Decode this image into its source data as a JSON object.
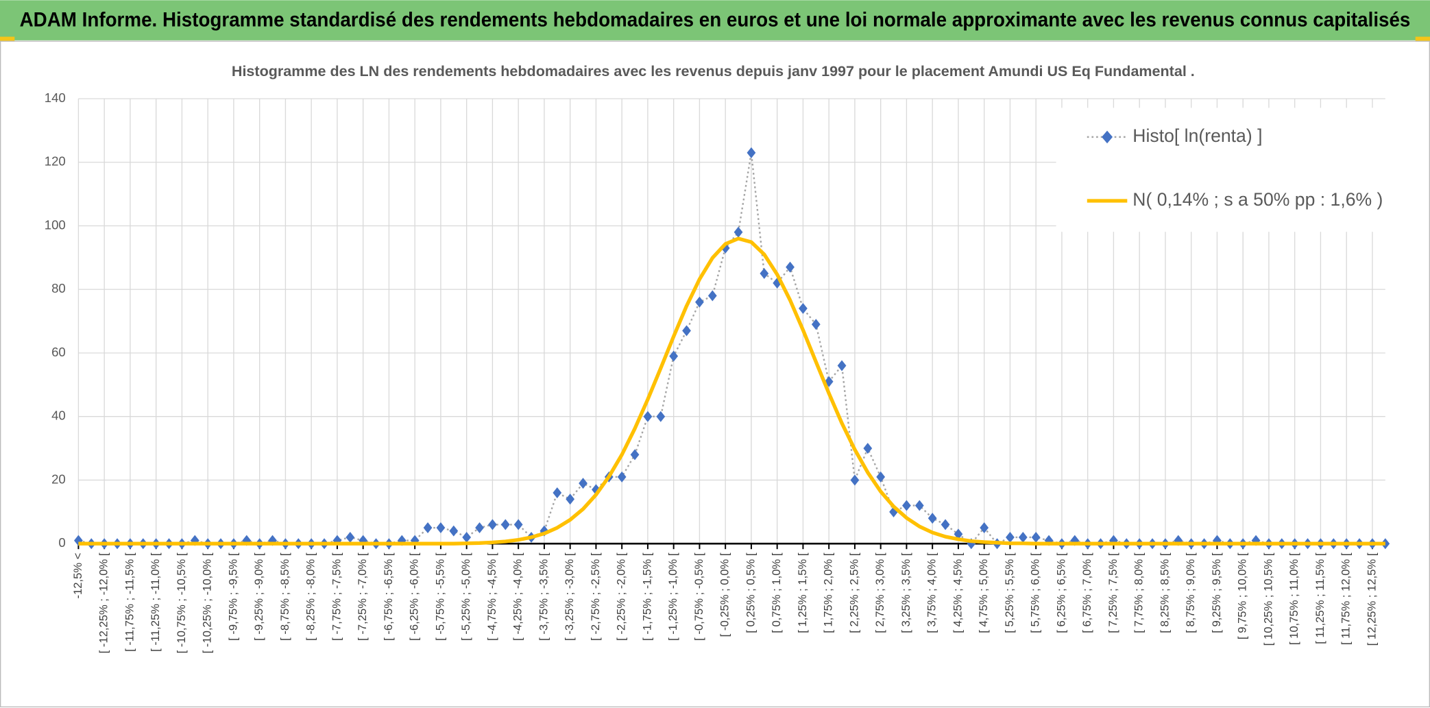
{
  "header": {
    "title": "ADAM Informe. Histogramme standardisé des rendements hebdomadaires en euros et une loi normale approximante avec les revenus connus capitalisés"
  },
  "chart_data": {
    "type": "line",
    "title": "Histogramme des LN des rendements hebdomadaires avec les revenus depuis janv 1997 pour le placement Amundi US Eq Fundamental .",
    "categories": [
      "-12,5% <",
      null,
      "[ -12,25% ; -12,0% [",
      null,
      "[ -11,75% ; -11,5% [",
      null,
      "[ -11,25% ; -11,0% [",
      null,
      "[ -10,75% ; -10,5% [",
      null,
      "[ -10,25% ; -10,0% [",
      null,
      "[ -9,75% ; -9,5% [",
      null,
      "[ -9,25% ; -9,0% [",
      null,
      "[ -8,75% ; -8,5% [",
      null,
      "[ -8,25% ; -8,0% [",
      null,
      "[ -7,75% ; -7,5% [",
      null,
      "[ -7,25% ; -7,0% [",
      null,
      "[ -6,75% ; -6,5% [",
      null,
      "[ -6,25% ; -6,0% [",
      null,
      "[ -5,75% ; -5,5% [",
      null,
      "[ -5,25% ; -5,0% [",
      null,
      "[ -4,75% ; -4,5% [",
      null,
      "[ -4,25% ; -4,0% [",
      null,
      "[ -3,75% ; -3,5% [",
      null,
      "[ -3,25% ; -3,0% [",
      null,
      "[ -2,75% ; -2,5% [",
      null,
      "[ -2,25% ; -2,0% [",
      null,
      "[ -1,75% ; -1,5% [",
      null,
      "[ -1,25% ; -1,0% [",
      null,
      "[ -0,75% ; -0,5% [",
      null,
      "[ -0,25% ; 0,0% [",
      null,
      "[ 0,25% ; 0,5% [",
      null,
      "[ 0,75% ; 1,0% [",
      null,
      "[ 1,25% ; 1,5% [",
      null,
      "[ 1,75% ; 2,0% [",
      null,
      "[ 2,25% ; 2,5% [",
      null,
      "[ 2,75% ; 3,0% [",
      null,
      "[ 3,25% ; 3,5% [",
      null,
      "[ 3,75% ; 4,0% [",
      null,
      "[ 4,25% ; 4,5% [",
      null,
      "[ 4,75% ; 5,0% [",
      null,
      "[ 5,25% ; 5,5% [",
      null,
      "[ 5,75% ; 6,0% [",
      null,
      "[ 6,25% ; 6,5% [",
      null,
      "[ 6,75% ; 7,0% [",
      null,
      "[ 7,25% ; 7,5% [",
      null,
      "[ 7,75% ; 8,0% [",
      null,
      "[ 8,25% ; 8,5% [",
      null,
      "[ 8,75% ; 9,0% [",
      null,
      "[ 9,25% ; 9,5% [",
      null,
      "[ 9,75% ; 10,0% [",
      null,
      "[ 10,25% ; 10,5% [",
      null,
      "[ 10,75% ; 11,0% [",
      null,
      "[ 11,25% ; 11,5% [",
      null,
      "[ 11,75% ; 12,0% [",
      null,
      "[ 12,25% ; 12,5% [",
      null
    ],
    "series": [
      {
        "name": "Histo[ ln(renta) ]",
        "color": "#4472c4",
        "values": [
          1,
          0,
          0,
          0,
          0,
          0,
          0,
          0,
          0,
          1,
          0,
          0,
          0,
          1,
          0,
          1,
          0,
          0,
          0,
          0,
          1,
          2,
          1,
          0,
          0,
          1,
          1,
          5,
          5,
          4,
          2,
          5,
          6,
          6,
          6,
          2,
          4,
          16,
          14,
          19,
          17,
          21,
          21,
          28,
          40,
          40,
          59,
          67,
          76,
          78,
          93,
          98,
          123,
          85,
          82,
          87,
          74,
          69,
          51,
          56,
          20,
          30,
          21,
          10,
          12,
          12,
          8,
          6,
          3,
          0,
          5,
          0,
          2,
          2,
          2,
          1,
          0,
          1,
          0,
          0,
          1,
          0,
          0,
          0,
          0,
          1,
          0,
          0,
          1,
          0,
          0,
          1,
          0,
          0,
          0,
          0,
          0,
          0,
          0,
          0,
          0,
          0
        ]
      },
      {
        "name": "N( 0,14% ; s a 50% pp : 1,6% )",
        "color": "#ffc000",
        "values": [
          0,
          0,
          0,
          0,
          0,
          0,
          0,
          0,
          0,
          0,
          0,
          0,
          0,
          0,
          0,
          0,
          0,
          0,
          0,
          0,
          0,
          0,
          0,
          0,
          0,
          0,
          0,
          0,
          0,
          0,
          0.1,
          0.2,
          0.4,
          0.7,
          1.2,
          2.0,
          3.2,
          5.0,
          7.5,
          10.9,
          15.4,
          21.1,
          28.0,
          36.2,
          45.4,
          55.2,
          65.2,
          74.8,
          83.2,
          89.9,
          94.3,
          96.0,
          94.9,
          91.0,
          84.7,
          76.6,
          67.2,
          57.2,
          47.3,
          37.9,
          29.6,
          22.4,
          16.4,
          11.7,
          8.1,
          5.4,
          3.5,
          2.2,
          1.4,
          0.8,
          0.5,
          0.3,
          0.1,
          0.1,
          0,
          0,
          0,
          0,
          0,
          0,
          0,
          0,
          0,
          0,
          0,
          0,
          0,
          0,
          0,
          0,
          0,
          0,
          0,
          0,
          0,
          0,
          0,
          0,
          0,
          0,
          0,
          0
        ]
      }
    ],
    "ylim": [
      0,
      140
    ],
    "yticks": [
      0,
      20,
      40,
      60,
      80,
      100,
      120,
      140
    ],
    "grid": true,
    "legend": "top-right"
  }
}
